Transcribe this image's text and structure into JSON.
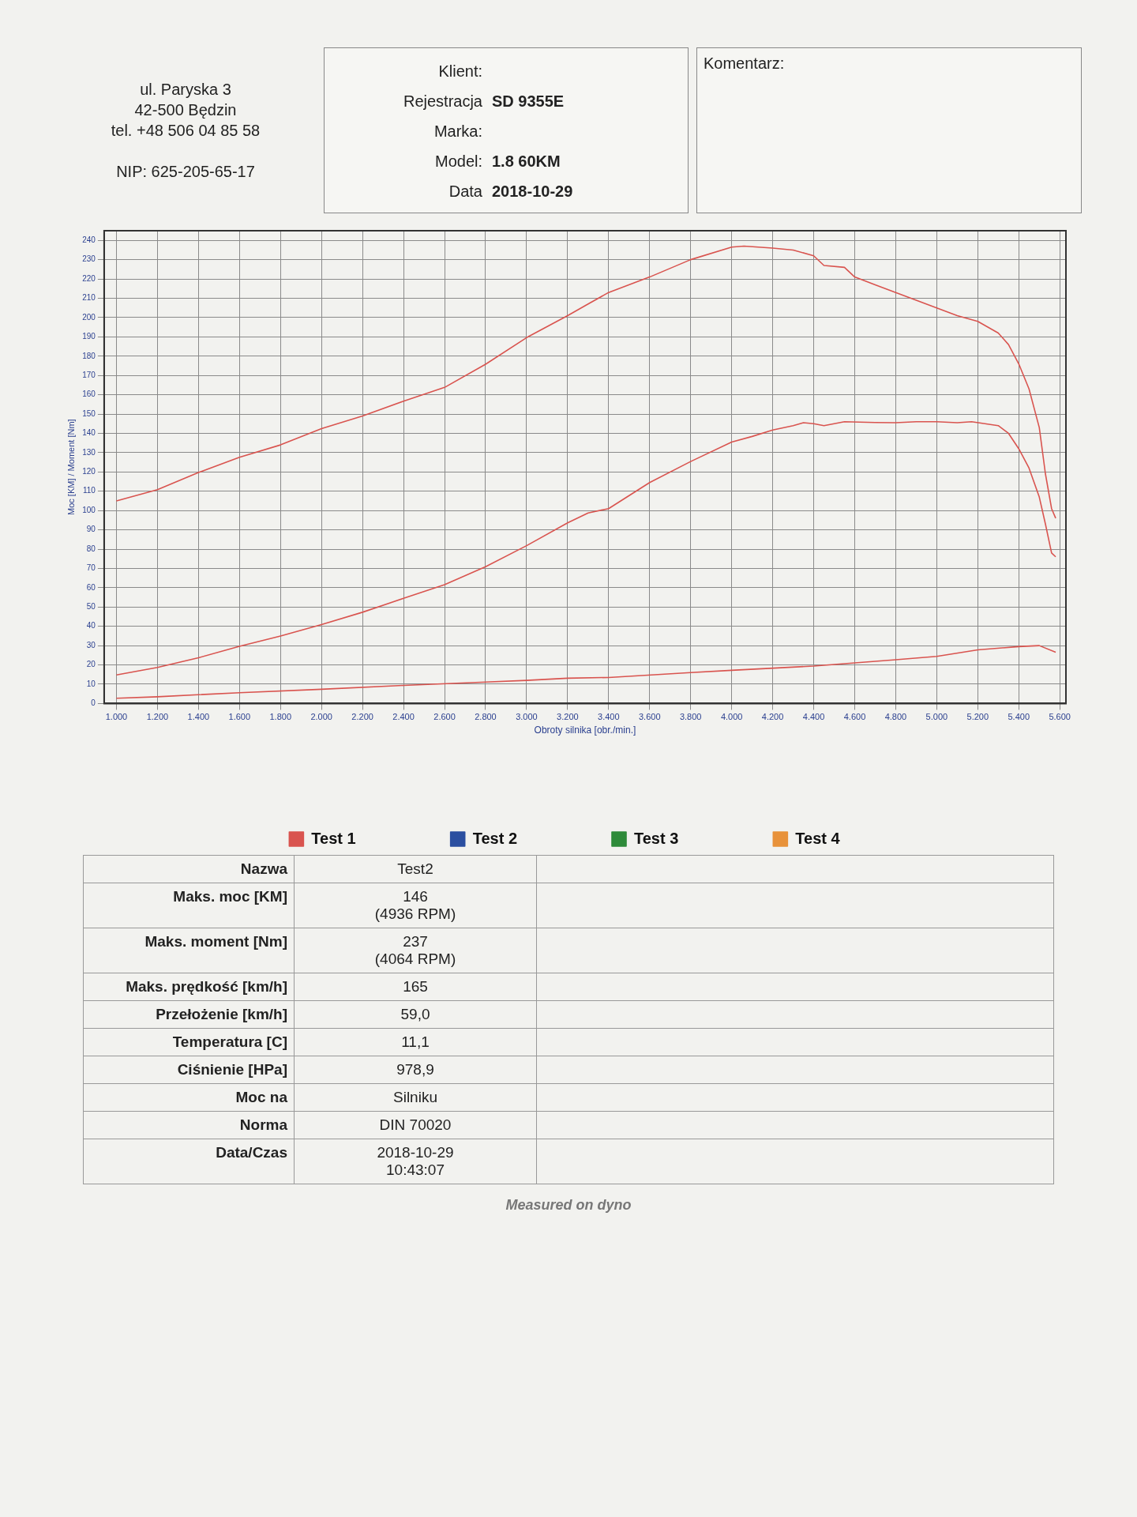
{
  "chart_data": {
    "type": "line",
    "xlabel": "Obroty silnika [obr./min.]",
    "ylabel": "Moc [KM] / Moment [Nm]",
    "xlim": [
      940,
      5630
    ],
    "xticks": [
      {
        "value": 1000,
        "label": "1.000"
      },
      {
        "value": 1200,
        "label": "1.200"
      },
      {
        "value": 1400,
        "label": "1.400"
      },
      {
        "value": 1600,
        "label": "1.600"
      },
      {
        "value": 1800,
        "label": "1.800"
      },
      {
        "value": 2000,
        "label": "2.000"
      },
      {
        "value": 2200,
        "label": "2.200"
      },
      {
        "value": 2400,
        "label": "2.400"
      },
      {
        "value": 2600,
        "label": "2.600"
      },
      {
        "value": 2800,
        "label": "2.800"
      },
      {
        "value": 3000,
        "label": "3.000"
      },
      {
        "value": 3200,
        "label": "3.200"
      },
      {
        "value": 3400,
        "label": "3.400"
      },
      {
        "value": 3600,
        "label": "3.600"
      },
      {
        "value": 3800,
        "label": "3.800"
      },
      {
        "value": 4000,
        "label": "4.000"
      },
      {
        "value": 4200,
        "label": "4.200"
      },
      {
        "value": 4400,
        "label": "4.400"
      },
      {
        "value": 4600,
        "label": "4.600"
      },
      {
        "value": 4800,
        "label": "4.800"
      },
      {
        "value": 5000,
        "label": "5.000"
      },
      {
        "value": 5200,
        "label": "5.200"
      },
      {
        "value": 5400,
        "label": "5.400"
      },
      {
        "value": 5600,
        "label": "5.600"
      }
    ],
    "ylim": [
      0,
      245
    ],
    "yticks": [
      0,
      10,
      20,
      30,
      40,
      50,
      60,
      70,
      80,
      90,
      100,
      110,
      120,
      130,
      140,
      150,
      160,
      170,
      180,
      190,
      200,
      210,
      220,
      230,
      240
    ],
    "grid": true,
    "legend": "bottom",
    "marker": "none",
    "line_style": "solid",
    "series": [
      {
        "name": "Test 1",
        "color": "#d9544f",
        "x": [
          1000,
          1200,
          1400,
          1600,
          1800,
          2000,
          2200,
          2400,
          2600,
          2800,
          3000,
          3200,
          3300,
          3400,
          3600,
          3800,
          4000,
          4060,
          4200,
          4300,
          4400,
          4450,
          4550,
          4600,
          4700,
          4800,
          4900,
          5000,
          5100,
          5200,
          5300,
          5350,
          5400,
          5450,
          5500,
          5530,
          5560,
          5580
        ],
        "values": [
          105,
          110.8,
          119.7,
          127.6,
          134,
          142.4,
          149,
          156.7,
          163.8,
          175.8,
          189.6,
          201,
          207,
          213,
          221,
          230,
          236.5,
          237,
          236,
          235,
          232,
          227,
          226,
          221,
          217,
          213,
          209,
          205,
          201,
          198,
          192,
          186,
          176,
          163,
          143,
          119,
          101,
          96
        ]
      },
      {
        "color": "#d9544f",
        "x": [
          1000,
          1200,
          1400,
          1600,
          1800,
          2000,
          2200,
          2400,
          2600,
          2800,
          3000,
          3200,
          3300,
          3400,
          3600,
          3800,
          4000,
          4100,
          4200,
          4300,
          4350,
          4400,
          4450,
          4550,
          4700,
          4800,
          4900,
          4936,
          5000,
          5100,
          5170,
          5300,
          5350,
          5400,
          5450,
          5500,
          5530,
          5560,
          5580
        ],
        "values": [
          14.8,
          18.7,
          23.7,
          29.6,
          35,
          40.9,
          47.3,
          54.5,
          61.6,
          70.9,
          81.8,
          93.6,
          98.7,
          101,
          114.5,
          125.4,
          135.5,
          138.4,
          141.7,
          144,
          145.5,
          145,
          144,
          146,
          145.6,
          145.5,
          146,
          146,
          146,
          145.5,
          146,
          144,
          140,
          132,
          122,
          107,
          93,
          78,
          76
        ]
      },
      {
        "color": "#d9544f",
        "x": [
          1000,
          1200,
          1600,
          2000,
          2400,
          2800,
          3000,
          3200,
          3400,
          3800,
          4000,
          4400,
          4800,
          5000,
          5200,
          5400,
          5500,
          5580
        ],
        "values": [
          2.7,
          3.5,
          5.6,
          7.4,
          9.4,
          11.1,
          12,
          13.1,
          13.5,
          16,
          17.2,
          19.4,
          22.7,
          24.4,
          27.8,
          29.5,
          30,
          26.6
        ]
      },
      {
        "name": "Test 2",
        "color": "#2b4fa0"
      },
      {
        "name": "Test 3",
        "color": "#2e8b3a"
      },
      {
        "name": "Test 4",
        "color": "#e8923a"
      }
    ],
    "annotations": [
      "ul. Paryska 3",
      "42-500 Będzin",
      "tel. +48 506 04 85 58",
      "NIP: 625-205-65-17",
      "Klient:",
      "Rejestracja",
      "SD 9355E",
      "Marka:",
      "Model:",
      "1.8 60KM",
      "Data",
      "2018-10-29",
      "Komentarz:",
      "Nazwa",
      "Test2",
      "Maks. moc [KM]",
      "146\n(4936 RPM)",
      "Maks. moment [Nm]",
      "237\n(4064 RPM)",
      "Maks. prędkość [km/h]",
      "165",
      "Przełożenie [km/h]",
      "59,0",
      "Temperatura [C]",
      "11,1",
      "Ciśnienie [HPa]",
      "978,9",
      "Moc na",
      "Silniku",
      "Norma",
      "DIN 70020",
      "Data/Czas",
      "2018-10-29\n10:43:07",
      "Measured on dyno"
    ]
  }
}
